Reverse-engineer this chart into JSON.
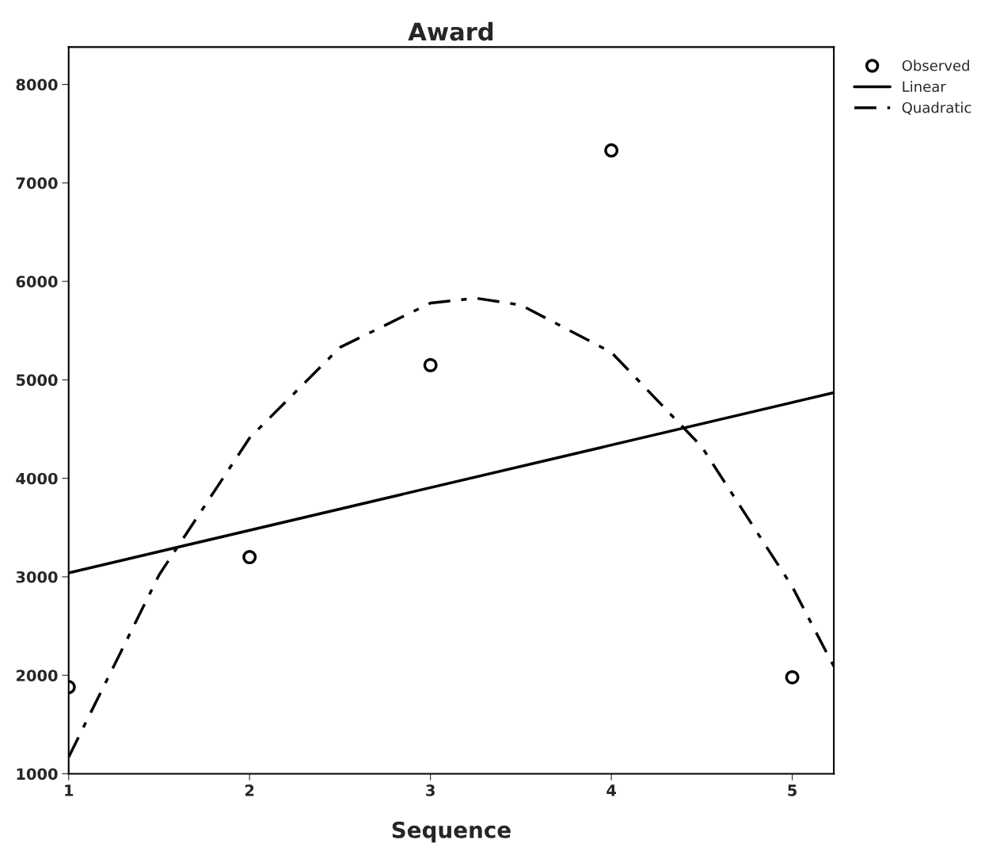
{
  "chart_data": {
    "type": "scatter",
    "title": "Award",
    "xlabel": "Sequence",
    "xlim": [
      1,
      5.23
    ],
    "xticks": [
      1,
      2,
      3,
      4,
      5
    ],
    "ylim": [
      1000,
      8380
    ],
    "yticks": [
      1000,
      2000,
      3000,
      4000,
      5000,
      6000,
      7000,
      8000
    ],
    "grid": false,
    "legend": "top right",
    "series": [
      {
        "name": "Observed",
        "marker": "circle",
        "color": "#000000",
        "x": [
          1,
          2,
          3,
          4,
          5
        ],
        "values": [
          1880,
          3200,
          5150,
          7330,
          1980
        ]
      },
      {
        "name": "Linear",
        "type": "line",
        "line_style": "solid",
        "color": "#000000",
        "x": [
          1,
          5.23
        ],
        "values": [
          3040,
          4870
        ]
      },
      {
        "name": "Quadratic",
        "type": "line",
        "line_style": "dashed",
        "color": "#000000",
        "x": [
          1,
          1.5,
          2,
          2.5,
          3,
          3.25,
          3.5,
          4,
          4.5,
          5,
          5.23
        ],
        "values": [
          1170,
          3020,
          4410,
          5330,
          5780,
          5830,
          5760,
          5280,
          4320,
          2900,
          2090
        ]
      }
    ]
  }
}
